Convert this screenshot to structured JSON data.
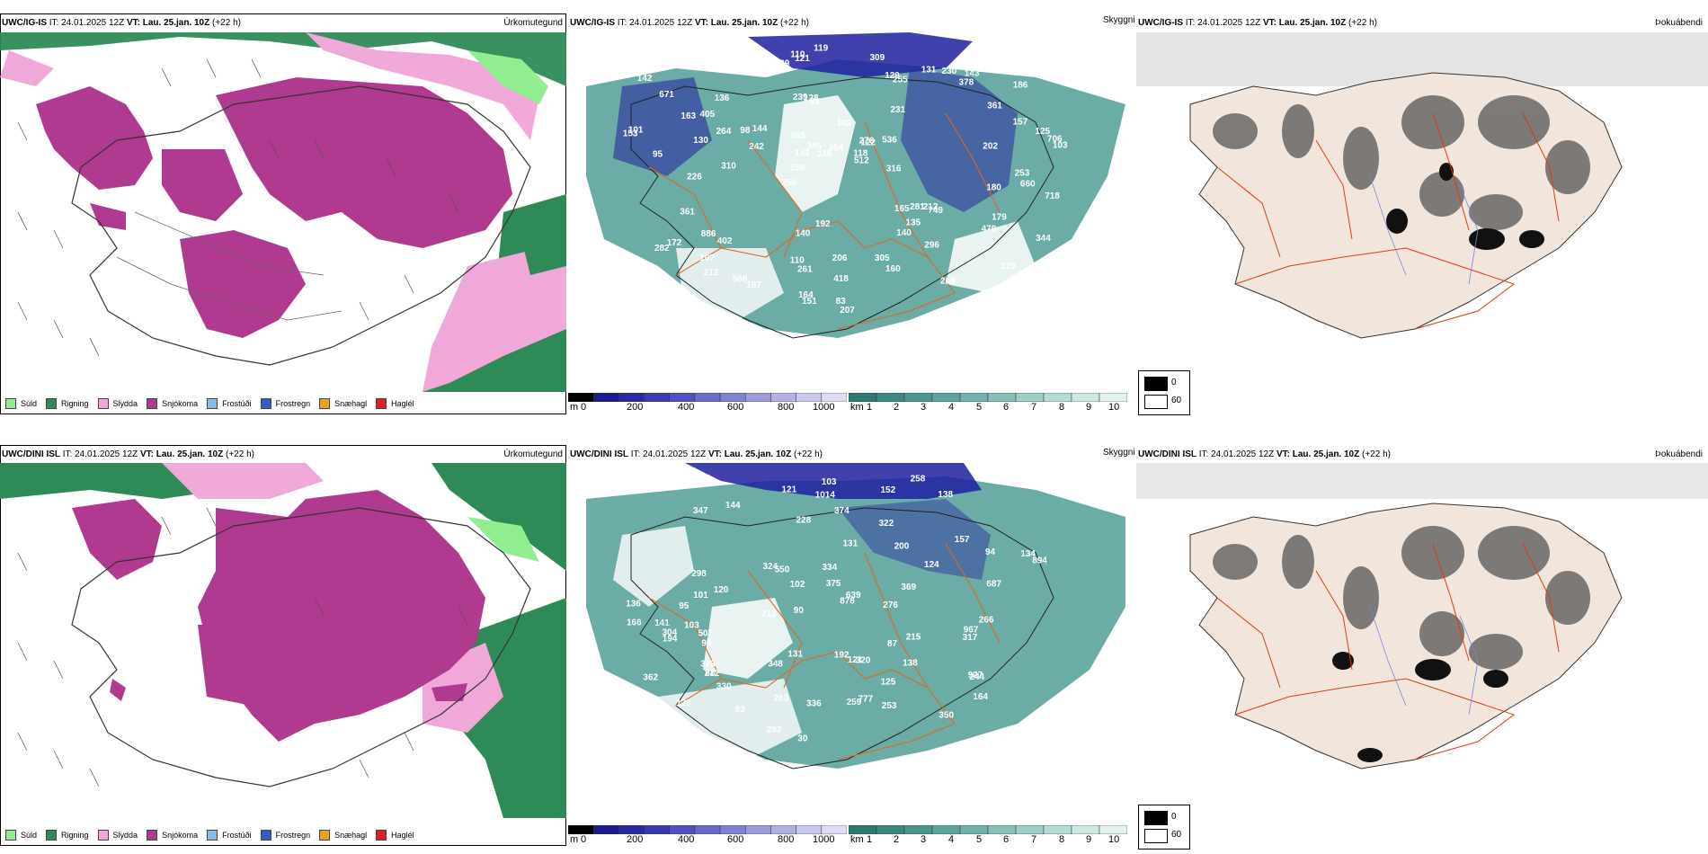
{
  "rows": [
    {
      "precip": {
        "model_label": "UWC/IG-IS",
        "it_prefix": "IT:",
        "it_value": "24.01.2025 12Z",
        "vt_prefix": "VT:",
        "vt_value": "Lau. 25.jan. 10Z",
        "lead": "(+22 h)",
        "title": "Úrkomutegund"
      },
      "sky": {
        "model_label": "UWC/IG-IS",
        "it_prefix": "IT:",
        "it_value": "24.01.2025 12Z",
        "vt_prefix": "VT:",
        "vt_value": "Lau. 25.jan. 10Z",
        "lead": "(+22 h)",
        "title": "Skyggni",
        "labels": [
          "95",
          "186",
          "250",
          "231",
          "239",
          "182",
          "172",
          "144",
          "212",
          "128",
          "122",
          "749",
          "671",
          "121",
          "103",
          "165",
          "157",
          "158",
          "110",
          "141",
          "136",
          "131",
          "402",
          "129",
          "212",
          "207",
          "98",
          "130",
          "140",
          "125",
          "118",
          "261",
          "512",
          "282",
          "361",
          "501",
          "135",
          "160",
          "107",
          "206",
          "143",
          "119",
          "310",
          "101",
          "405",
          "230",
          "309",
          "129",
          "345",
          "344",
          "140",
          "187",
          "281",
          "264",
          "284",
          "163",
          "718",
          "485",
          "418",
          "354",
          "316",
          "179",
          "164",
          "202",
          "192",
          "269",
          "83",
          "305",
          "110",
          "660",
          "536",
          "296",
          "119",
          "479",
          "153",
          "151",
          "129",
          "255",
          "226",
          "253",
          "706",
          "361",
          "886",
          "588",
          "276",
          "378",
          "242",
          "180",
          "142",
          "93"
        ]
      },
      "fog": {
        "model_label": "UWC/IG-IS",
        "it_prefix": "IT:",
        "it_value": "24.01.2025 12Z",
        "vt_prefix": "VT:",
        "vt_value": "Lau. 25.jan. 10Z",
        "lead": "(+22 h)",
        "title": "Þokuábendi"
      }
    },
    {
      "precip": {
        "model_label": "UWC/DINI ISL",
        "it_prefix": "IT:",
        "it_value": "24.01.2025 12Z",
        "vt_prefix": "VT:",
        "vt_value": "Lau. 25.jan. 10Z",
        "lead": "(+22 h)",
        "title": "Úrkomutegund"
      },
      "sky": {
        "model_label": "UWC/DINI ISL",
        "it_prefix": "IT:",
        "it_value": "24.01.2025 12Z",
        "vt_prefix": "VT:",
        "vt_value": "Lau. 25.jan. 10Z",
        "lead": "(+22 h)",
        "title": "Skyggni",
        "labels": [
          "129",
          "138",
          "144",
          "157",
          "121",
          "120",
          "99",
          "88",
          "94",
          "124",
          "141",
          "103",
          "138",
          "878",
          "30",
          "121",
          "164",
          "136",
          "212",
          "282",
          "253",
          "1014",
          "228",
          "639",
          "375",
          "263",
          "304",
          "152",
          "131",
          "215",
          "298",
          "330",
          "777",
          "192",
          "244",
          "194",
          "134",
          "276",
          "200",
          "967",
          "894",
          "374",
          "336",
          "507",
          "166",
          "101",
          "87",
          "259",
          "348",
          "125",
          "550",
          "334",
          "687",
          "212",
          "320",
          "324",
          "927",
          "347",
          "95",
          "258",
          "322",
          "90",
          "131",
          "362",
          "373",
          "369",
          "266",
          "350",
          "317",
          "92",
          "102",
          "103"
        ]
      },
      "fog": {
        "model_label": "UWC/DINI ISL",
        "it_prefix": "IT:",
        "it_value": "24.01.2025 12Z",
        "vt_prefix": "VT:",
        "vt_value": "Lau. 25.jan. 10Z",
        "lead": "(+22 h)",
        "title": "Þokuábendi"
      }
    }
  ],
  "precip_legend": [
    {
      "label": "Súld",
      "color": "#90ee90"
    },
    {
      "label": "Rigning",
      "color": "#2e8b57"
    },
    {
      "label": "Slydda",
      "color": "#f0a8d8"
    },
    {
      "label": "Snjókoma",
      "color": "#b03a90"
    },
    {
      "label": "Frostúði",
      "color": "#88b8f0"
    },
    {
      "label": "Frostregn",
      "color": "#3060c0"
    },
    {
      "label": "Snæhagl",
      "color": "#f0a020"
    },
    {
      "label": "Haglél",
      "color": "#e02020"
    }
  ],
  "ceiling_bar": {
    "unit": "m",
    "ticks": [
      "0",
      "200",
      "400",
      "600",
      "800",
      "1000"
    ],
    "colors": [
      "#000000",
      "#1a1a8a",
      "#2a2aa0",
      "#3a3ab0",
      "#5050c0",
      "#6a6acc",
      "#8080d4",
      "#9a9adc",
      "#b0b0e4",
      "#c8c8ee",
      "#dcdcf4"
    ]
  },
  "vis_bar": {
    "unit": "km",
    "ticks": [
      "1",
      "2",
      "3",
      "4",
      "5",
      "6",
      "7",
      "8",
      "9",
      "10"
    ],
    "colors": [
      "#2a7a72",
      "#3a8880",
      "#4a968e",
      "#5ca49c",
      "#70b2aa",
      "#86c0b8",
      "#9ccec6",
      "#b4dcd4",
      "#cce8e2",
      "#e4f2ee"
    ]
  },
  "fog_bar": {
    "ticks": [
      "0",
      "60"
    ],
    "colors": [
      "#000000",
      "#ffffff"
    ]
  },
  "colors": {
    "snow": "#b03a90",
    "rain": "#2e8b57",
    "sleet": "#f0a8d8",
    "drizzle": "#90ee90",
    "low_cloud": "#2020a0",
    "vis_teal": "#3a9088",
    "roads": "#e06820",
    "land_fog": "#f2e6dc"
  }
}
